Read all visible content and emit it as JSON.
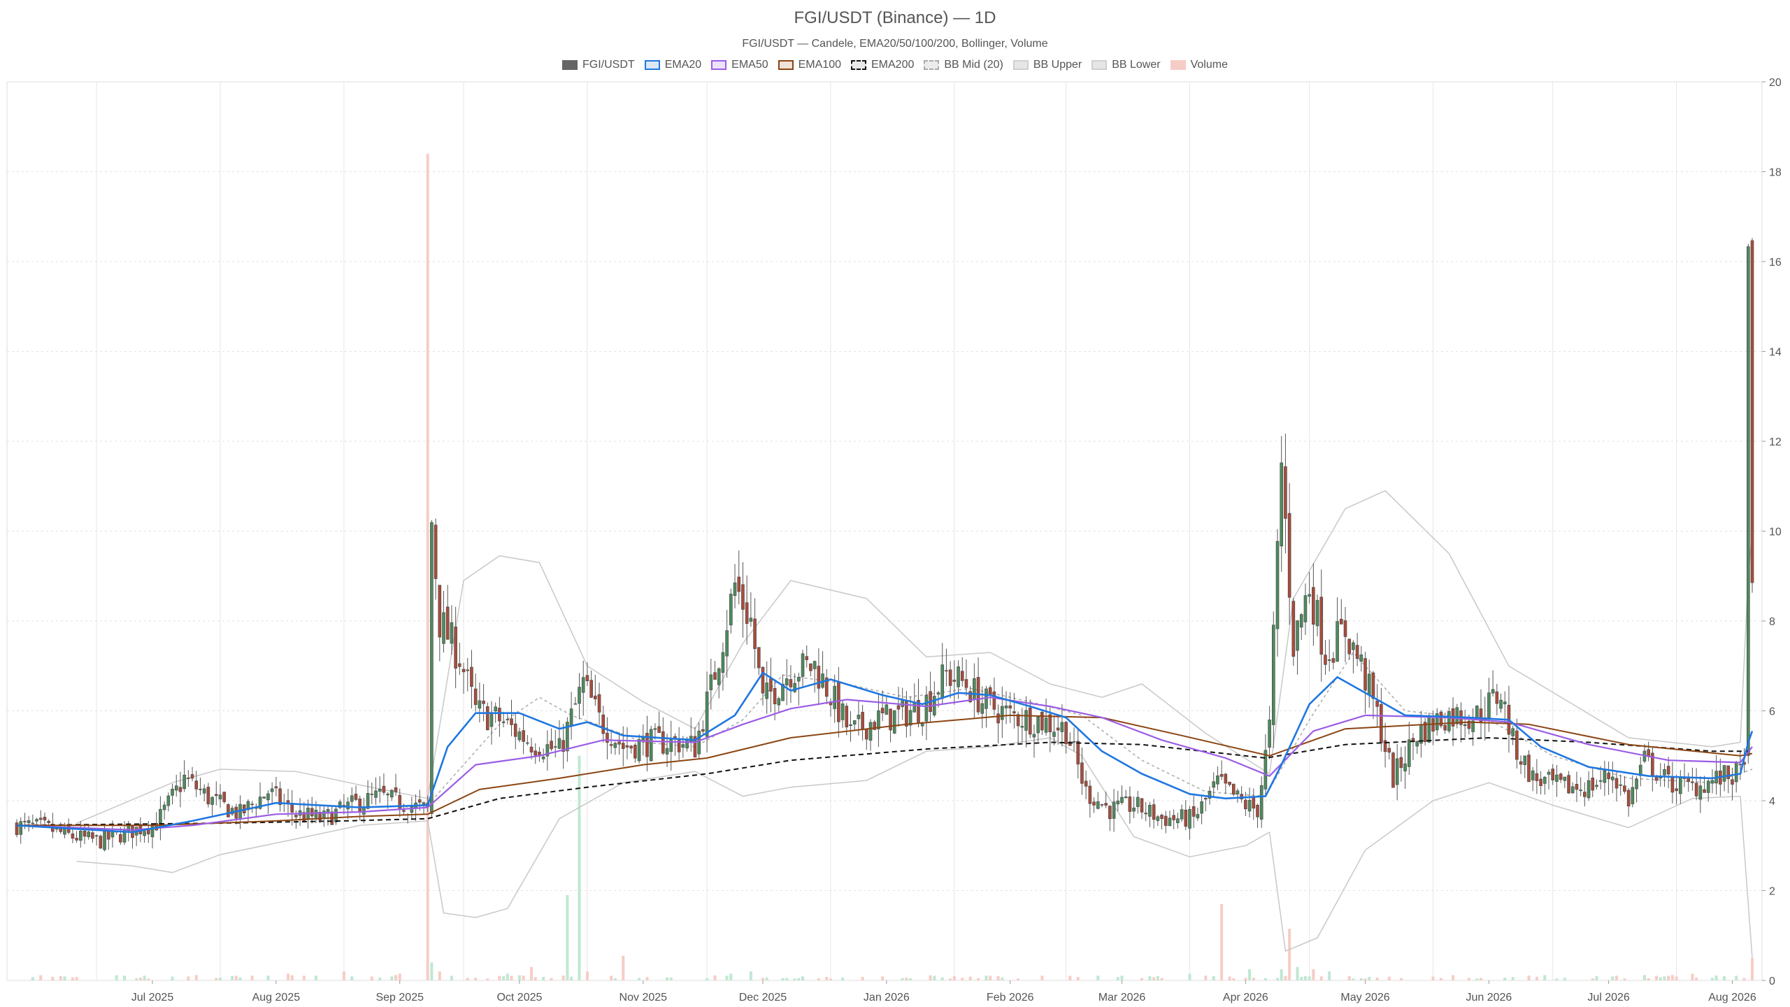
{
  "chart_data": {
    "type": "candlestick",
    "title": "FGI/USDT (Binance) — 1D",
    "subtitle": "FGI/USDT — Candele, EMA20/50/100/200, Bollinger, Volume",
    "legend": [
      {
        "name": "FGI/USDT",
        "fill": "#666666",
        "border": "#666666",
        "dash": false
      },
      {
        "name": "EMA20",
        "fill": "#dbe8f7",
        "border": "#1f77e0",
        "dash": false
      },
      {
        "name": "EMA50",
        "fill": "#ece3fb",
        "border": "#9b5de5",
        "dash": false
      },
      {
        "name": "EMA100",
        "fill": "#efe2d8",
        "border": "#8b4513",
        "dash": false
      },
      {
        "name": "EMA200",
        "fill": "#e8e8e8",
        "border": "#111111",
        "dash": true
      },
      {
        "name": "BB Mid (20)",
        "fill": "#ececec",
        "border": "#aaaaaa",
        "dash": true
      },
      {
        "name": "BB Upper",
        "fill": "#e6e6e6",
        "border": "#cfcfcf",
        "dash": false
      },
      {
        "name": "BB Lower",
        "fill": "#e6e6e6",
        "border": "#cfcfcf",
        "dash": false
      },
      {
        "name": "Volume",
        "fill": "#f6cdc6",
        "border": "#f6cdc6",
        "dash": false
      }
    ],
    "legend_position": "top-center",
    "x_ticks": [
      "Jul 2025",
      "Aug 2025",
      "Sep 2025",
      "Oct 2025",
      "Nov 2025",
      "Dec 2025",
      "Jan 2026",
      "Feb 2026",
      "Mar 2026",
      "Apr 2026",
      "May 2026",
      "Jun 2026",
      "Jul 2026",
      "Aug 2026"
    ],
    "x_range": [
      "2025-06-11",
      "2026-08-20"
    ],
    "ylim": [
      0,
      20
    ],
    "y_ticks": [
      0,
      2,
      4,
      6,
      8,
      10,
      12,
      14,
      16,
      18,
      20
    ],
    "y_axis_side": "right",
    "grid": true,
    "colors": {
      "up": "#4e8a5e",
      "down": "#a84c3c",
      "wick": "#555555",
      "vol_up": "#bfe8d2",
      "vol_down": "#f6cdc6"
    },
    "price_path": [
      [
        "2025-06-11",
        3.45
      ],
      [
        "2025-06-18",
        3.4
      ],
      [
        "2025-06-25",
        3.2
      ],
      [
        "2025-07-02",
        3.1
      ],
      [
        "2025-07-09",
        3.3
      ],
      [
        "2025-07-16",
        3.5
      ],
      [
        "2025-07-23",
        4.5
      ],
      [
        "2025-07-30",
        4.0
      ],
      [
        "2025-08-06",
        3.7
      ],
      [
        "2025-08-13",
        4.2
      ],
      [
        "2025-08-20",
        3.7
      ],
      [
        "2025-08-27",
        3.6
      ],
      [
        "2025-09-03",
        3.9
      ],
      [
        "2025-09-10",
        4.1
      ],
      [
        "2025-09-17",
        3.9
      ],
      [
        "2025-09-22",
        3.8
      ],
      [
        "2025-09-23",
        10.2
      ],
      [
        "2025-09-25",
        8.0
      ],
      [
        "2025-09-30",
        7.2
      ],
      [
        "2025-10-04",
        6.0
      ],
      [
        "2025-10-10",
        5.8
      ],
      [
        "2025-10-18",
        5.3
      ],
      [
        "2025-10-25",
        5.1
      ],
      [
        "2025-10-31",
        6.6
      ],
      [
        "2025-11-04",
        5.8
      ],
      [
        "2025-11-10",
        5.2
      ],
      [
        "2025-11-17",
        5.3
      ],
      [
        "2025-11-24",
        5.3
      ],
      [
        "2025-11-28",
        5.2
      ],
      [
        "2025-12-02",
        6.5
      ],
      [
        "2025-12-08",
        8.8
      ],
      [
        "2025-12-12",
        8.0
      ],
      [
        "2025-12-15",
        6.2
      ],
      [
        "2025-12-22",
        6.9
      ],
      [
        "2025-12-28",
        7.0
      ],
      [
        "2026-01-02",
        6.2
      ],
      [
        "2026-01-06",
        5.5
      ],
      [
        "2026-01-12",
        5.8
      ],
      [
        "2026-01-18",
        5.9
      ],
      [
        "2026-01-24",
        6.1
      ],
      [
        "2026-01-30",
        6.8
      ],
      [
        "2026-02-04",
        6.6
      ],
      [
        "2026-02-08",
        6.2
      ],
      [
        "2026-02-15",
        5.9
      ],
      [
        "2026-02-22",
        5.8
      ],
      [
        "2026-03-01",
        5.6
      ],
      [
        "2026-03-06",
        4.2
      ],
      [
        "2026-03-12",
        3.8
      ],
      [
        "2026-03-18",
        3.9
      ],
      [
        "2026-03-25",
        3.6
      ],
      [
        "2026-04-02",
        3.6
      ],
      [
        "2026-04-08",
        4.4
      ],
      [
        "2026-04-15",
        3.9
      ],
      [
        "2026-04-18",
        3.8
      ],
      [
        "2026-04-21",
        5.6
      ],
      [
        "2026-04-24",
        11.5
      ],
      [
        "2026-04-27",
        7.5
      ],
      [
        "2026-05-01",
        8.8
      ],
      [
        "2026-05-05",
        7.3
      ],
      [
        "2026-05-10",
        7.8
      ],
      [
        "2026-05-14",
        7.0
      ],
      [
        "2026-05-18",
        5.9
      ],
      [
        "2026-05-22",
        4.5
      ],
      [
        "2026-05-28",
        5.5
      ],
      [
        "2026-06-04",
        5.9
      ],
      [
        "2026-06-12",
        5.9
      ],
      [
        "2026-06-18",
        6.4
      ],
      [
        "2026-06-21",
        5.3
      ],
      [
        "2026-06-26",
        4.5
      ],
      [
        "2026-07-03",
        4.3
      ],
      [
        "2026-07-10",
        4.3
      ],
      [
        "2026-07-16",
        4.6
      ],
      [
        "2026-07-20",
        4.0
      ],
      [
        "2026-07-24",
        4.9
      ],
      [
        "2026-07-30",
        4.4
      ],
      [
        "2026-08-05",
        4.3
      ],
      [
        "2026-08-12",
        4.5
      ],
      [
        "2026-08-17",
        4.6
      ],
      [
        "2026-08-18",
        5.1
      ],
      [
        "2026-08-19",
        15.5
      ],
      [
        "2026-08-20",
        8.5
      ]
    ],
    "ema20": [
      [
        "2025-06-11",
        3.45
      ],
      [
        "2025-07-10",
        3.3
      ],
      [
        "2025-07-25",
        3.55
      ],
      [
        "2025-08-15",
        3.95
      ],
      [
        "2025-09-05",
        3.85
      ],
      [
        "2025-09-22",
        3.9
      ],
      [
        "2025-09-27",
        5.2
      ],
      [
        "2025-10-04",
        5.95
      ],
      [
        "2025-10-15",
        5.95
      ],
      [
        "2025-10-25",
        5.6
      ],
      [
        "2025-11-01",
        5.75
      ],
      [
        "2025-11-10",
        5.45
      ],
      [
        "2025-11-28",
        5.35
      ],
      [
        "2025-12-08",
        5.9
      ],
      [
        "2025-12-15",
        6.85
      ],
      [
        "2025-12-22",
        6.45
      ],
      [
        "2026-01-01",
        6.7
      ],
      [
        "2026-01-14",
        6.35
      ],
      [
        "2026-01-24",
        6.15
      ],
      [
        "2026-02-02",
        6.4
      ],
      [
        "2026-02-10",
        6.35
      ],
      [
        "2026-02-20",
        6.1
      ],
      [
        "2026-03-01",
        5.85
      ],
      [
        "2026-03-10",
        5.1
      ],
      [
        "2026-03-20",
        4.6
      ],
      [
        "2026-04-01",
        4.15
      ],
      [
        "2026-04-10",
        4.05
      ],
      [
        "2026-04-20",
        4.1
      ],
      [
        "2026-04-24",
        4.8
      ],
      [
        "2026-05-01",
        6.15
      ],
      [
        "2026-05-08",
        6.75
      ],
      [
        "2026-05-15",
        6.4
      ],
      [
        "2026-05-25",
        5.9
      ],
      [
        "2026-06-10",
        5.85
      ],
      [
        "2026-06-20",
        5.8
      ],
      [
        "2026-06-28",
        5.2
      ],
      [
        "2026-07-10",
        4.75
      ],
      [
        "2026-07-25",
        4.55
      ],
      [
        "2026-08-10",
        4.5
      ],
      [
        "2026-08-17",
        4.6
      ],
      [
        "2026-08-19",
        5.3
      ],
      [
        "2026-08-20",
        5.55
      ]
    ],
    "ema50": [
      [
        "2025-06-11",
        3.45
      ],
      [
        "2025-07-10",
        3.35
      ],
      [
        "2025-07-25",
        3.45
      ],
      [
        "2025-08-15",
        3.7
      ],
      [
        "2025-09-05",
        3.75
      ],
      [
        "2025-09-22",
        3.85
      ],
      [
        "2025-10-04",
        4.8
      ],
      [
        "2025-10-20",
        5.0
      ],
      [
        "2025-11-05",
        5.35
      ],
      [
        "2025-11-28",
        5.3
      ],
      [
        "2025-12-10",
        5.7
      ],
      [
        "2025-12-22",
        6.05
      ],
      [
        "2026-01-05",
        6.25
      ],
      [
        "2026-01-25",
        6.1
      ],
      [
        "2026-02-10",
        6.3
      ],
      [
        "2026-02-25",
        6.1
      ],
      [
        "2026-03-10",
        5.85
      ],
      [
        "2026-03-25",
        5.35
      ],
      [
        "2026-04-10",
        4.95
      ],
      [
        "2026-04-21",
        4.55
      ],
      [
        "2026-05-02",
        5.55
      ],
      [
        "2026-05-15",
        5.9
      ],
      [
        "2026-06-05",
        5.85
      ],
      [
        "2026-06-20",
        5.75
      ],
      [
        "2026-07-10",
        5.25
      ],
      [
        "2026-07-30",
        4.9
      ],
      [
        "2026-08-17",
        4.85
      ],
      [
        "2026-08-20",
        5.2
      ]
    ],
    "ema100": [
      [
        "2025-06-11",
        3.45
      ],
      [
        "2025-07-15",
        3.45
      ],
      [
        "2025-08-15",
        3.55
      ],
      [
        "2025-09-05",
        3.65
      ],
      [
        "2025-09-22",
        3.7
      ],
      [
        "2025-10-05",
        4.25
      ],
      [
        "2025-10-25",
        4.5
      ],
      [
        "2025-11-15",
        4.8
      ],
      [
        "2025-12-01",
        4.95
      ],
      [
        "2025-12-22",
        5.4
      ],
      [
        "2026-01-20",
        5.7
      ],
      [
        "2026-02-15",
        5.9
      ],
      [
        "2026-03-10",
        5.85
      ],
      [
        "2026-03-30",
        5.45
      ],
      [
        "2026-04-21",
        5.0
      ],
      [
        "2026-05-10",
        5.6
      ],
      [
        "2026-06-10",
        5.75
      ],
      [
        "2026-06-25",
        5.7
      ],
      [
        "2026-07-20",
        5.25
      ],
      [
        "2026-08-17",
        5.0
      ],
      [
        "2026-08-20",
        5.05
      ]
    ],
    "ema200": [
      [
        "2025-06-11",
        3.45
      ],
      [
        "2025-08-01",
        3.5
      ],
      [
        "2025-09-01",
        3.55
      ],
      [
        "2025-09-22",
        3.6
      ],
      [
        "2025-10-10",
        4.05
      ],
      [
        "2025-11-01",
        4.3
      ],
      [
        "2025-12-01",
        4.6
      ],
      [
        "2025-12-22",
        4.9
      ],
      [
        "2026-01-25",
        5.15
      ],
      [
        "2026-02-25",
        5.3
      ],
      [
        "2026-03-20",
        5.25
      ],
      [
        "2026-04-20",
        4.95
      ],
      [
        "2026-05-10",
        5.25
      ],
      [
        "2026-06-15",
        5.4
      ],
      [
        "2026-07-10",
        5.3
      ],
      [
        "2026-08-10",
        5.1
      ],
      [
        "2026-08-20",
        5.1
      ]
    ],
    "bb_mid": [
      [
        "2025-09-15",
        3.85
      ],
      [
        "2025-09-22",
        3.9
      ],
      [
        "2025-10-01",
        4.8
      ],
      [
        "2025-10-10",
        5.7
      ],
      [
        "2025-10-20",
        6.3
      ],
      [
        "2025-10-28",
        5.9
      ],
      [
        "2025-11-05",
        5.65
      ],
      [
        "2025-11-15",
        5.3
      ],
      [
        "2025-11-28",
        5.2
      ],
      [
        "2025-12-10",
        5.8
      ],
      [
        "2025-12-20",
        6.8
      ],
      [
        "2026-01-05",
        6.6
      ],
      [
        "2026-01-20",
        6.3
      ],
      [
        "2026-02-05",
        6.5
      ],
      [
        "2026-02-20",
        6.2
      ],
      [
        "2026-03-05",
        5.9
      ],
      [
        "2026-03-20",
        4.9
      ],
      [
        "2026-04-05",
        4.2
      ],
      [
        "2026-04-20",
        4.1
      ],
      [
        "2026-05-01",
        5.8
      ],
      [
        "2026-05-12",
        7.3
      ],
      [
        "2026-05-25",
        6.0
      ],
      [
        "2026-06-15",
        5.8
      ],
      [
        "2026-07-01",
        5.0
      ],
      [
        "2026-07-20",
        4.5
      ],
      [
        "2026-08-10",
        4.4
      ],
      [
        "2026-08-20",
        4.7
      ]
    ],
    "bb_upper": [
      [
        "2025-06-26",
        3.5
      ],
      [
        "2025-07-20",
        4.4
      ],
      [
        "2025-08-01",
        4.7
      ],
      [
        "2025-08-20",
        4.65
      ],
      [
        "2025-09-05",
        4.35
      ],
      [
        "2025-09-22",
        4.05
      ],
      [
        "2025-10-01",
        8.9
      ],
      [
        "2025-10-10",
        9.45
      ],
      [
        "2025-10-20",
        9.3
      ],
      [
        "2025-11-01",
        7.0
      ],
      [
        "2025-11-15",
        6.2
      ],
      [
        "2025-11-28",
        5.6
      ],
      [
        "2025-12-10",
        7.5
      ],
      [
        "2025-12-22",
        8.9
      ],
      [
        "2026-01-10",
        8.5
      ],
      [
        "2026-01-25",
        7.2
      ],
      [
        "2026-02-10",
        7.3
      ],
      [
        "2026-02-25",
        6.6
      ],
      [
        "2026-03-10",
        6.3
      ],
      [
        "2026-03-20",
        6.6
      ],
      [
        "2026-04-05",
        5.5
      ],
      [
        "2026-04-21",
        4.6
      ],
      [
        "2026-04-27",
        8.5
      ],
      [
        "2026-05-10",
        10.5
      ],
      [
        "2026-05-20",
        10.9
      ],
      [
        "2026-06-05",
        9.5
      ],
      [
        "2026-06-20",
        7.0
      ],
      [
        "2026-07-05",
        6.2
      ],
      [
        "2026-07-20",
        5.4
      ],
      [
        "2026-08-10",
        5.2
      ],
      [
        "2026-08-17",
        5.3
      ],
      [
        "2026-08-19",
        9.0
      ],
      [
        "2026-08-20",
        10.0
      ]
    ],
    "bb_lower": [
      [
        "2025-06-26",
        2.65
      ],
      [
        "2025-07-10",
        2.55
      ],
      [
        "2025-07-20",
        2.4
      ],
      [
        "2025-08-01",
        2.8
      ],
      [
        "2025-08-20",
        3.15
      ],
      [
        "2025-09-05",
        3.45
      ],
      [
        "2025-09-22",
        3.55
      ],
      [
        "2025-09-26",
        1.5
      ],
      [
        "2025-10-04",
        1.4
      ],
      [
        "2025-10-12",
        1.6
      ],
      [
        "2025-10-25",
        3.6
      ],
      [
        "2025-11-10",
        4.4
      ],
      [
        "2025-11-28",
        4.65
      ],
      [
        "2025-12-10",
        4.1
      ],
      [
        "2025-12-22",
        4.3
      ],
      [
        "2026-01-10",
        4.45
      ],
      [
        "2026-01-25",
        5.1
      ],
      [
        "2026-02-10",
        5.2
      ],
      [
        "2026-02-25",
        5.4
      ],
      [
        "2026-03-05",
        5.0
      ],
      [
        "2026-03-18",
        3.2
      ],
      [
        "2026-04-01",
        2.75
      ],
      [
        "2026-04-15",
        3.0
      ],
      [
        "2026-04-21",
        3.3
      ],
      [
        "2026-04-25",
        0.65
      ],
      [
        "2026-05-03",
        0.95
      ],
      [
        "2026-05-15",
        2.9
      ],
      [
        "2026-06-01",
        4.0
      ],
      [
        "2026-06-15",
        4.4
      ],
      [
        "2026-07-01",
        3.9
      ],
      [
        "2026-07-20",
        3.4
      ],
      [
        "2026-08-05",
        4.05
      ],
      [
        "2026-08-17",
        4.1
      ],
      [
        "2026-08-20",
        0.5
      ]
    ],
    "volume_spikes": [
      [
        "2025-07-26",
        0.12
      ],
      [
        "2025-08-18",
        0.15
      ],
      [
        "2025-09-01",
        0.2
      ],
      [
        "2025-09-15",
        0.15
      ],
      [
        "2025-09-22",
        18.4
      ],
      [
        "2025-09-23",
        0.4
      ],
      [
        "2025-09-25",
        0.2
      ],
      [
        "2025-10-12",
        0.15
      ],
      [
        "2025-10-18",
        0.3
      ],
      [
        "2025-10-27",
        1.9
      ],
      [
        "2025-10-30",
        5.0
      ],
      [
        "2025-11-01",
        0.2
      ],
      [
        "2025-11-10",
        0.55
      ],
      [
        "2025-12-07",
        0.15
      ],
      [
        "2025-12-12",
        0.2
      ],
      [
        "2026-04-01",
        0.15
      ],
      [
        "2026-04-09",
        1.7
      ],
      [
        "2026-04-16",
        0.25
      ],
      [
        "2026-04-24",
        0.25
      ],
      [
        "2026-04-26",
        1.15
      ],
      [
        "2026-04-28",
        0.3
      ],
      [
        "2026-05-02",
        0.25
      ],
      [
        "2026-05-06",
        0.2
      ],
      [
        "2026-08-05",
        0.15
      ],
      [
        "2026-08-20",
        0.5
      ]
    ]
  }
}
